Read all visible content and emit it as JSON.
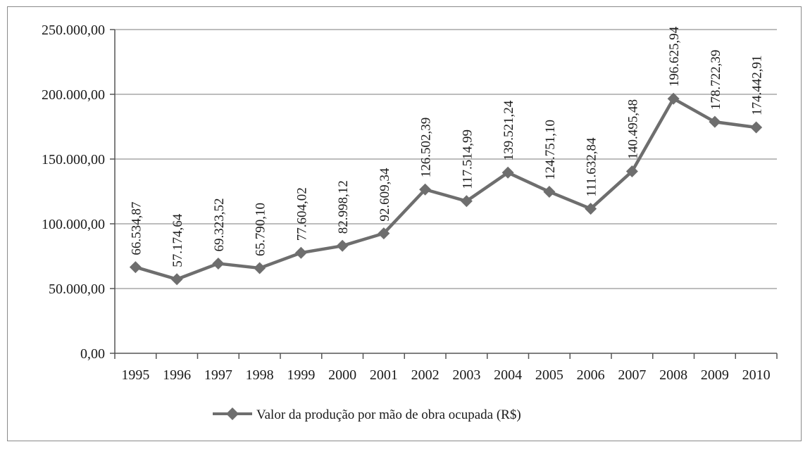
{
  "chart_data": {
    "type": "line",
    "title": "",
    "xlabel": "",
    "ylabel": "",
    "categories": [
      "1995",
      "1996",
      "1997",
      "1998",
      "1999",
      "2000",
      "2001",
      "2002",
      "2003",
      "2004",
      "2005",
      "2006",
      "2007",
      "2008",
      "2009",
      "2010"
    ],
    "series": [
      {
        "name": "Valor da produção por mão de obra ocupada (R$)",
        "values": [
          66534.87,
          57174.64,
          69323.52,
          65790.1,
          77604.02,
          82998.12,
          92609.34,
          126502.39,
          117514.99,
          139521.24,
          124751.1,
          111632.84,
          140495.48,
          196625.94,
          178722.39,
          174442.91
        ],
        "value_labels": [
          "66.534,87",
          "57.174,64",
          "69.323,52",
          "65.790,10",
          "77.604,02",
          "82.998,12",
          "92.609,34",
          "126.502,39",
          "117.514,99",
          "139.521,24",
          "124.751,10",
          "111.632,84",
          "140.495,48",
          "196.625,94",
          "178.722,39",
          "174.442,91"
        ],
        "color": "#6e6e6e",
        "marker": "diamond"
      }
    ],
    "ylim": [
      0,
      250000
    ],
    "yticks": [
      0,
      50000,
      100000,
      150000,
      200000,
      250000
    ],
    "ytick_labels": [
      "0,00",
      "50.000,00",
      "100.000,00",
      "150.000,00",
      "200.000,00",
      "250.000,00"
    ],
    "grid": true,
    "legend": "bottom"
  }
}
